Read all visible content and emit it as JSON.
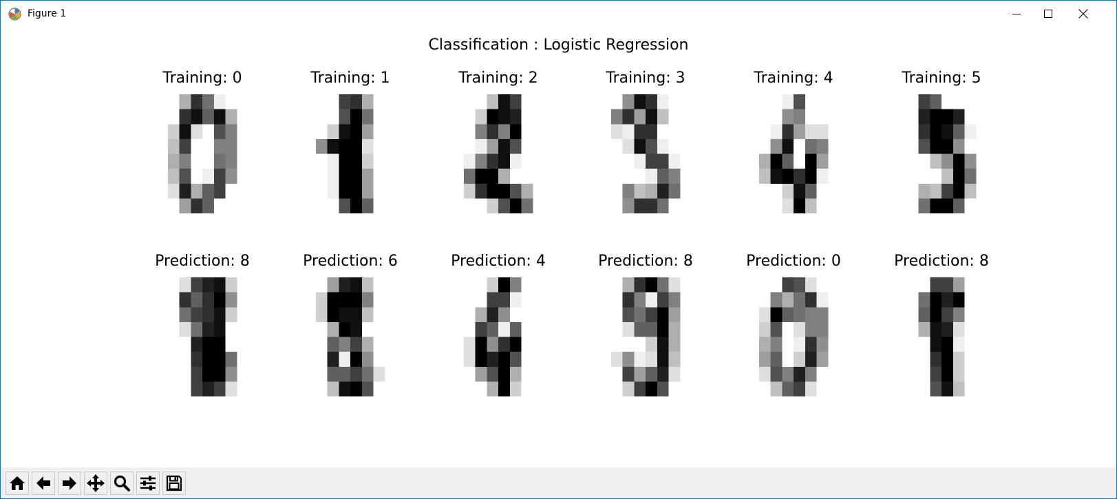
{
  "window": {
    "title": "Figure 1",
    "app_icon": "matplotlib-icon",
    "controls": [
      "minimize-icon",
      "maximize-icon",
      "close-icon"
    ]
  },
  "figure": {
    "suptitle": "Classification : Logistic Regression",
    "colormap": "gray_r",
    "training": [
      {
        "label": "Training: 0",
        "pixels": [
          0,
          0,
          5,
          13,
          9,
          1,
          0,
          0,
          0,
          0,
          13,
          15,
          10,
          15,
          5,
          0,
          0,
          3,
          15,
          2,
          0,
          11,
          8,
          0,
          0,
          4,
          12,
          0,
          0,
          8,
          8,
          0,
          0,
          5,
          8,
          0,
          0,
          9,
          8,
          0,
          0,
          4,
          11,
          0,
          1,
          12,
          7,
          0,
          0,
          2,
          14,
          5,
          10,
          12,
          0,
          0,
          0,
          0,
          6,
          13,
          10,
          0,
          0,
          0
        ]
      },
      {
        "label": "Training: 1",
        "pixels": [
          0,
          0,
          0,
          12,
          13,
          5,
          0,
          0,
          0,
          0,
          0,
          11,
          16,
          9,
          0,
          0,
          0,
          0,
          3,
          15,
          16,
          6,
          0,
          0,
          0,
          7,
          15,
          16,
          16,
          2,
          0,
          0,
          0,
          0,
          1,
          16,
          16,
          3,
          0,
          0,
          0,
          0,
          1,
          16,
          16,
          6,
          0,
          0,
          0,
          0,
          1,
          16,
          16,
          6,
          0,
          0,
          0,
          0,
          0,
          11,
          16,
          10,
          0,
          0
        ]
      },
      {
        "label": "Training: 2",
        "pixels": [
          0,
          0,
          0,
          4,
          15,
          12,
          0,
          0,
          0,
          0,
          3,
          16,
          15,
          14,
          0,
          0,
          0,
          0,
          8,
          13,
          8,
          16,
          0,
          0,
          0,
          0,
          1,
          6,
          15,
          11,
          0,
          0,
          0,
          1,
          8,
          13,
          15,
          1,
          0,
          0,
          0,
          9,
          16,
          16,
          5,
          0,
          0,
          0,
          0,
          3,
          13,
          16,
          16,
          11,
          5,
          0,
          0,
          0,
          0,
          3,
          11,
          16,
          9,
          0
        ]
      },
      {
        "label": "Training: 3",
        "pixels": [
          0,
          0,
          7,
          15,
          13,
          1,
          0,
          0,
          0,
          8,
          13,
          6,
          15,
          4,
          0,
          0,
          0,
          2,
          1,
          13,
          13,
          0,
          0,
          0,
          0,
          0,
          2,
          15,
          11,
          1,
          0,
          0,
          0,
          0,
          0,
          1,
          12,
          12,
          1,
          0,
          0,
          0,
          0,
          0,
          1,
          10,
          8,
          0,
          0,
          0,
          8,
          4,
          5,
          14,
          9,
          0,
          0,
          0,
          7,
          13,
          13,
          9,
          0,
          0
        ]
      },
      {
        "label": "Training: 4",
        "pixels": [
          0,
          0,
          0,
          1,
          11,
          0,
          0,
          0,
          0,
          0,
          0,
          7,
          8,
          0,
          0,
          0,
          0,
          0,
          1,
          13,
          6,
          2,
          2,
          0,
          0,
          0,
          7,
          15,
          0,
          9,
          8,
          0,
          0,
          5,
          16,
          10,
          0,
          16,
          6,
          0,
          0,
          4,
          15,
          16,
          13,
          16,
          1,
          0,
          0,
          0,
          0,
          3,
          15,
          10,
          0,
          0,
          0,
          0,
          0,
          2,
          16,
          4,
          0,
          0
        ]
      },
      {
        "label": "Training: 5",
        "pixels": [
          0,
          0,
          12,
          10,
          0,
          0,
          0,
          0,
          0,
          0,
          14,
          16,
          16,
          14,
          0,
          0,
          0,
          0,
          13,
          16,
          15,
          10,
          1,
          0,
          0,
          0,
          11,
          16,
          16,
          7,
          0,
          0,
          0,
          0,
          0,
          4,
          7,
          16,
          7,
          0,
          0,
          0,
          0,
          0,
          4,
          16,
          9,
          0,
          0,
          0,
          5,
          4,
          12,
          16,
          4,
          0,
          0,
          0,
          9,
          16,
          16,
          10,
          0,
          0
        ]
      }
    ],
    "prediction": [
      {
        "label": "Prediction: 8",
        "pixels": [
          0,
          0,
          2,
          12,
          14,
          15,
          3,
          0,
          0,
          0,
          13,
          10,
          13,
          16,
          7,
          0,
          0,
          0,
          9,
          12,
          13,
          15,
          3,
          0,
          0,
          0,
          2,
          9,
          14,
          15,
          0,
          0,
          0,
          0,
          0,
          14,
          16,
          16,
          0,
          0,
          0,
          0,
          0,
          13,
          16,
          16,
          9,
          0,
          0,
          0,
          0,
          12,
          16,
          16,
          7,
          0,
          0,
          0,
          0,
          12,
          14,
          12,
          2,
          0
        ]
      },
      {
        "label": "Prediction: 6",
        "pixels": [
          0,
          0,
          6,
          14,
          15,
          4,
          0,
          0,
          0,
          3,
          16,
          16,
          16,
          8,
          0,
          0,
          0,
          3,
          16,
          15,
          15,
          4,
          0,
          0,
          0,
          0,
          5,
          16,
          15,
          0,
          0,
          0,
          0,
          0,
          10,
          8,
          12,
          5,
          0,
          0,
          0,
          0,
          14,
          1,
          16,
          7,
          0,
          0,
          0,
          0,
          10,
          10,
          12,
          9,
          2,
          0,
          0,
          0,
          4,
          15,
          16,
          11,
          0,
          0
        ]
      },
      {
        "label": "Prediction: 4",
        "pixels": [
          0,
          0,
          0,
          3,
          16,
          8,
          0,
          0,
          0,
          0,
          0,
          12,
          12,
          1,
          0,
          0,
          0,
          0,
          5,
          14,
          7,
          0,
          0,
          0,
          0,
          0,
          12,
          10,
          1,
          10,
          0,
          0,
          0,
          2,
          16,
          7,
          13,
          16,
          0,
          0,
          0,
          2,
          16,
          14,
          16,
          11,
          0,
          0,
          0,
          0,
          6,
          11,
          16,
          5,
          0,
          0,
          0,
          0,
          0,
          5,
          16,
          3,
          0,
          0
        ]
      },
      {
        "label": "Prediction: 8",
        "pixels": [
          0,
          0,
          5,
          13,
          16,
          9,
          2,
          0,
          0,
          0,
          13,
          8,
          1,
          12,
          8,
          0,
          0,
          0,
          11,
          9,
          12,
          16,
          6,
          0,
          0,
          0,
          2,
          10,
          10,
          16,
          5,
          0,
          0,
          0,
          0,
          0,
          3,
          15,
          5,
          0,
          0,
          2,
          7,
          1,
          2,
          15,
          4,
          0,
          0,
          0,
          12,
          6,
          10,
          14,
          2,
          0,
          0,
          0,
          3,
          12,
          16,
          11,
          0,
          0
        ]
      },
      {
        "label": "Prediction: 0",
        "pixels": [
          0,
          0,
          0,
          12,
          11,
          2,
          0,
          0,
          0,
          0,
          8,
          5,
          9,
          13,
          1,
          0,
          0,
          2,
          16,
          10,
          9,
          8,
          8,
          0,
          0,
          3,
          11,
          0,
          2,
          8,
          8,
          0,
          0,
          5,
          8,
          0,
          1,
          13,
          7,
          0,
          0,
          6,
          10,
          0,
          3,
          14,
          6,
          0,
          0,
          2,
          11,
          8,
          14,
          8,
          0,
          0,
          0,
          0,
          4,
          10,
          12,
          2,
          0,
          0
        ]
      },
      {
        "label": "Prediction: 8",
        "pixels": [
          0,
          0,
          0,
          12,
          12,
          6,
          0,
          0,
          0,
          0,
          9,
          16,
          14,
          16,
          0,
          0,
          0,
          0,
          10,
          16,
          12,
          8,
          0,
          0,
          0,
          0,
          5,
          15,
          14,
          2,
          0,
          0,
          0,
          0,
          0,
          15,
          16,
          1,
          0,
          0,
          0,
          0,
          0,
          13,
          16,
          3,
          0,
          0,
          0,
          0,
          0,
          12,
          16,
          3,
          0,
          0,
          0,
          0,
          0,
          11,
          15,
          4,
          0,
          0
        ]
      }
    ]
  },
  "toolbar": {
    "tools": [
      {
        "name": "home-button",
        "icon": "home-icon"
      },
      {
        "name": "back-button",
        "icon": "arrow-left-icon"
      },
      {
        "name": "forward-button",
        "icon": "arrow-right-icon"
      },
      {
        "name": "pan-button",
        "icon": "move-icon"
      },
      {
        "name": "zoom-button",
        "icon": "magnifier-icon"
      },
      {
        "name": "configure-subplots-button",
        "icon": "sliders-icon"
      },
      {
        "name": "save-button",
        "icon": "floppy-disk-icon"
      }
    ]
  }
}
